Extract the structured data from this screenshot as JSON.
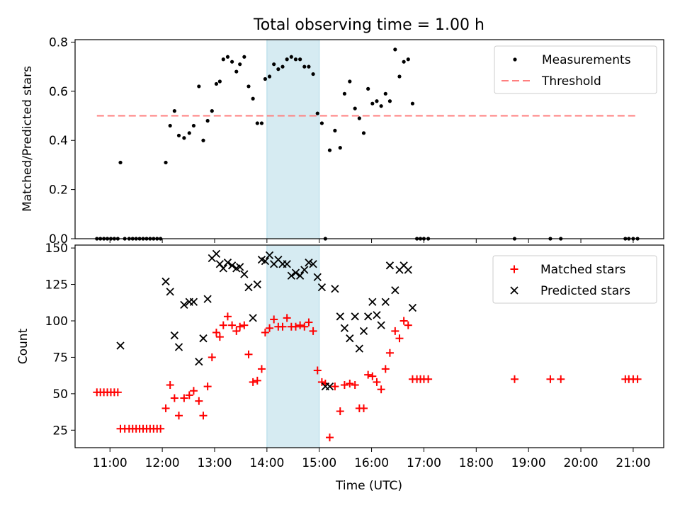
{
  "title": "Total observing time = 1.00 h",
  "colors": {
    "measurement": "#000000",
    "threshold": "#ff7f7f",
    "matched": "#ff0000",
    "predicted": "#000000",
    "span": "#add8e6"
  },
  "chart_data": [
    {
      "type": "scatter",
      "panel": "top",
      "title": "Total observing time = 1.00 h",
      "xlabel": "",
      "ylabel": "Matched/Predicted stars",
      "xlim": [
        "10:20",
        "21:35"
      ],
      "ylim": [
        0,
        0.81
      ],
      "yticks": [
        "0.0",
        "0.2",
        "0.4",
        "0.6",
        "0.8"
      ],
      "ytick_values": [
        0,
        0.2,
        0.4,
        0.6,
        0.8
      ],
      "grid": false,
      "legend_position": "upper right",
      "highlight_span": [
        "14:00",
        "15:00"
      ],
      "series": [
        {
          "name": "Measurements",
          "marker": "dot",
          "points": [
            [
              "10:45",
              0
            ],
            [
              "10:49",
              0
            ],
            [
              "10:53",
              0
            ],
            [
              "10:57",
              0
            ],
            [
              "11:01",
              0
            ],
            [
              "11:05",
              0
            ],
            [
              "11:09",
              0
            ],
            [
              "11:12",
              0.31
            ],
            [
              "11:17",
              0
            ],
            [
              "11:22",
              0
            ],
            [
              "11:26",
              0
            ],
            [
              "11:30",
              0
            ],
            [
              "11:34",
              0
            ],
            [
              "11:38",
              0
            ],
            [
              "11:42",
              0
            ],
            [
              "11:46",
              0
            ],
            [
              "11:50",
              0
            ],
            [
              "11:54",
              0
            ],
            [
              "11:58",
              0
            ],
            [
              "12:04",
              0.31
            ],
            [
              "12:09",
              0.46
            ],
            [
              "12:14",
              0.52
            ],
            [
              "12:19",
              0.42
            ],
            [
              "12:25",
              0.41
            ],
            [
              "12:31",
              0.43
            ],
            [
              "12:36",
              0.46
            ],
            [
              "12:42",
              0.62
            ],
            [
              "12:47",
              0.4
            ],
            [
              "12:52",
              0.48
            ],
            [
              "12:57",
              0.52
            ],
            [
              "13:02",
              0.63
            ],
            [
              "13:06",
              0.64
            ],
            [
              "13:10",
              0.73
            ],
            [
              "13:15",
              0.74
            ],
            [
              "13:20",
              0.72
            ],
            [
              "13:25",
              0.68
            ],
            [
              "13:29",
              0.71
            ],
            [
              "13:34",
              0.74
            ],
            [
              "13:39",
              0.62
            ],
            [
              "13:44",
              0.57
            ],
            [
              "13:49",
              0.47
            ],
            [
              "13:54",
              0.47
            ],
            [
              "13:58",
              0.65
            ],
            [
              "14:03",
              0.66
            ],
            [
              "14:08",
              0.71
            ],
            [
              "14:13",
              0.69
            ],
            [
              "14:18",
              0.7
            ],
            [
              "14:23",
              0.73
            ],
            [
              "14:28",
              0.74
            ],
            [
              "14:33",
              0.73
            ],
            [
              "14:38",
              0.73
            ],
            [
              "14:43",
              0.7
            ],
            [
              "14:48",
              0.7
            ],
            [
              "14:53",
              0.67
            ],
            [
              "14:58",
              0.51
            ],
            [
              "15:03",
              0.47
            ],
            [
              "15:07",
              0
            ],
            [
              "15:12",
              0.36
            ],
            [
              "15:18",
              0.44
            ],
            [
              "15:24",
              0.37
            ],
            [
              "15:29",
              0.59
            ],
            [
              "15:35",
              0.64
            ],
            [
              "15:41",
              0.53
            ],
            [
              "15:46",
              0.49
            ],
            [
              "15:51",
              0.43
            ],
            [
              "15:56",
              0.61
            ],
            [
              "16:01",
              0.55
            ],
            [
              "16:06",
              0.56
            ],
            [
              "16:11",
              0.54
            ],
            [
              "16:16",
              0.59
            ],
            [
              "16:21",
              0.56
            ],
            [
              "16:27",
              0.77
            ],
            [
              "16:32",
              0.66
            ],
            [
              "16:37",
              0.72
            ],
            [
              "16:42",
              0.73
            ],
            [
              "16:47",
              0.55
            ],
            [
              "16:52",
              0
            ],
            [
              "16:56",
              0
            ],
            [
              "17:00",
              0
            ],
            [
              "17:05",
              0
            ],
            [
              "18:44",
              0
            ],
            [
              "19:25",
              0
            ],
            [
              "19:37",
              0
            ],
            [
              "20:51",
              0
            ],
            [
              "20:55",
              0
            ],
            [
              "21:00",
              0
            ],
            [
              "21:05",
              0
            ]
          ]
        },
        {
          "name": "Threshold",
          "style": "dashed",
          "points": [
            [
              "10:45",
              0.5
            ],
            [
              "21:05",
              0.5
            ]
          ]
        }
      ]
    },
    {
      "type": "scatter",
      "panel": "bottom",
      "xlabel": "Time (UTC)",
      "ylabel": "Count",
      "xlim": [
        "10:20",
        "21:35"
      ],
      "ylim": [
        13,
        152
      ],
      "xticks": [
        "11:00",
        "12:00",
        "13:00",
        "14:00",
        "15:00",
        "16:00",
        "17:00",
        "18:00",
        "19:00",
        "20:00",
        "21:00"
      ],
      "yticks": [
        "25",
        "50",
        "75",
        "100",
        "125",
        "150"
      ],
      "ytick_values": [
        25,
        50,
        75,
        100,
        125,
        150
      ],
      "grid": false,
      "legend_position": "upper right",
      "highlight_span": [
        "14:00",
        "15:00"
      ],
      "series": [
        {
          "name": "Matched stars",
          "marker": "plus",
          "points": [
            [
              "10:45",
              51
            ],
            [
              "10:49",
              51
            ],
            [
              "10:53",
              51
            ],
            [
              "10:57",
              51
            ],
            [
              "11:01",
              51
            ],
            [
              "11:05",
              51
            ],
            [
              "11:09",
              51
            ],
            [
              "11:12",
              26
            ],
            [
              "11:17",
              26
            ],
            [
              "11:22",
              26
            ],
            [
              "11:26",
              26
            ],
            [
              "11:30",
              26
            ],
            [
              "11:34",
              26
            ],
            [
              "11:38",
              26
            ],
            [
              "11:42",
              26
            ],
            [
              "11:46",
              26
            ],
            [
              "11:50",
              26
            ],
            [
              "11:54",
              26
            ],
            [
              "11:58",
              26
            ],
            [
              "12:04",
              40
            ],
            [
              "12:09",
              56
            ],
            [
              "12:14",
              47
            ],
            [
              "12:19",
              35
            ],
            [
              "12:25",
              47
            ],
            [
              "12:31",
              49
            ],
            [
              "12:36",
              52
            ],
            [
              "12:42",
              45
            ],
            [
              "12:47",
              35
            ],
            [
              "12:52",
              55
            ],
            [
              "12:57",
              75
            ],
            [
              "13:02",
              92
            ],
            [
              "13:06",
              89
            ],
            [
              "13:10",
              97
            ],
            [
              "13:15",
              103
            ],
            [
              "13:20",
              97
            ],
            [
              "13:25",
              93
            ],
            [
              "13:29",
              96
            ],
            [
              "13:34",
              97
            ],
            [
              "13:39",
              77
            ],
            [
              "13:44",
              58
            ],
            [
              "13:49",
              59
            ],
            [
              "13:54",
              67
            ],
            [
              "13:58",
              92
            ],
            [
              "14:03",
              95
            ],
            [
              "14:08",
              101
            ],
            [
              "14:13",
              96
            ],
            [
              "14:18",
              96
            ],
            [
              "14:23",
              102
            ],
            [
              "14:28",
              96
            ],
            [
              "14:33",
              96
            ],
            [
              "14:38",
              97
            ],
            [
              "14:43",
              96
            ],
            [
              "14:48",
              99
            ],
            [
              "14:53",
              93
            ],
            [
              "14:58",
              66
            ],
            [
              "15:03",
              58
            ],
            [
              "15:07",
              57
            ],
            [
              "15:12",
              20
            ],
            [
              "15:18",
              55
            ],
            [
              "15:24",
              38
            ],
            [
              "15:29",
              56
            ],
            [
              "15:35",
              57
            ],
            [
              "15:41",
              56
            ],
            [
              "15:46",
              40
            ],
            [
              "15:51",
              40
            ],
            [
              "15:56",
              63
            ],
            [
              "16:01",
              62
            ],
            [
              "16:06",
              58
            ],
            [
              "16:11",
              53
            ],
            [
              "16:16",
              67
            ],
            [
              "16:21",
              78
            ],
            [
              "16:27",
              93
            ],
            [
              "16:32",
              88
            ],
            [
              "16:37",
              100
            ],
            [
              "16:42",
              97
            ],
            [
              "16:47",
              60
            ],
            [
              "16:52",
              60
            ],
            [
              "16:56",
              60
            ],
            [
              "17:00",
              60
            ],
            [
              "17:05",
              60
            ],
            [
              "18:44",
              60
            ],
            [
              "19:25",
              60
            ],
            [
              "19:37",
              60
            ],
            [
              "20:51",
              60
            ],
            [
              "20:55",
              60
            ],
            [
              "21:00",
              60
            ],
            [
              "21:05",
              60
            ]
          ]
        },
        {
          "name": "Predicted stars",
          "marker": "x",
          "points": [
            [
              "11:12",
              83
            ],
            [
              "12:04",
              127
            ],
            [
              "12:09",
              120
            ],
            [
              "12:14",
              90
            ],
            [
              "12:19",
              82
            ],
            [
              "12:25",
              111
            ],
            [
              "12:31",
              113
            ],
            [
              "12:36",
              113
            ],
            [
              "12:42",
              72
            ],
            [
              "12:47",
              88
            ],
            [
              "12:52",
              115
            ],
            [
              "12:57",
              143
            ],
            [
              "13:02",
              146
            ],
            [
              "13:06",
              139
            ],
            [
              "13:10",
              136
            ],
            [
              "13:15",
              140
            ],
            [
              "13:20",
              138
            ],
            [
              "13:25",
              136
            ],
            [
              "13:29",
              137
            ],
            [
              "13:34",
              132
            ],
            [
              "13:39",
              123
            ],
            [
              "13:44",
              102
            ],
            [
              "13:49",
              125
            ],
            [
              "13:54",
              142
            ],
            [
              "13:58",
              141
            ],
            [
              "14:03",
              145
            ],
            [
              "14:08",
              139
            ],
            [
              "14:13",
              142
            ],
            [
              "14:18",
              139
            ],
            [
              "14:23",
              139
            ],
            [
              "14:28",
              131
            ],
            [
              "14:33",
              133
            ],
            [
              "14:38",
              131
            ],
            [
              "14:43",
              135
            ],
            [
              "14:48",
              140
            ],
            [
              "14:53",
              139
            ],
            [
              "14:58",
              130
            ],
            [
              "15:03",
              123
            ],
            [
              "15:07",
              55
            ],
            [
              "15:12",
              55
            ],
            [
              "15:18",
              122
            ],
            [
              "15:24",
              103
            ],
            [
              "15:29",
              95
            ],
            [
              "15:35",
              88
            ],
            [
              "15:41",
              103
            ],
            [
              "15:46",
              81
            ],
            [
              "15:51",
              93
            ],
            [
              "15:56",
              103
            ],
            [
              "16:01",
              113
            ],
            [
              "16:06",
              104
            ],
            [
              "16:11",
              97
            ],
            [
              "16:16",
              113
            ],
            [
              "16:21",
              138
            ],
            [
              "16:27",
              121
            ],
            [
              "16:32",
              135
            ],
            [
              "16:37",
              138
            ],
            [
              "16:42",
              135
            ],
            [
              "16:47",
              109
            ]
          ]
        }
      ]
    }
  ]
}
